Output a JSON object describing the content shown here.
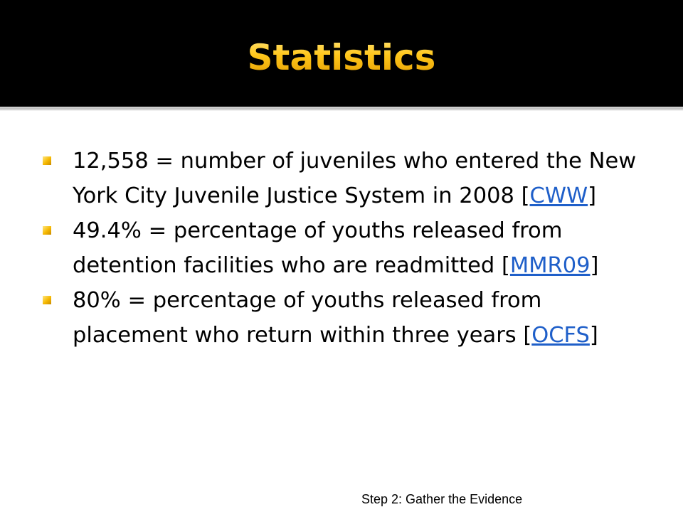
{
  "slide": {
    "title": "Statistics",
    "bullets": [
      {
        "text": "12,558 = number of juveniles who entered the New York City Juvenile Justice System in 2008 ",
        "ref_open": "[",
        "ref_label": "CWW",
        "ref_close": "]"
      },
      {
        "text": "49.4% = percentage of youths released from detention facilities who are readmitted ",
        "ref_open": "[",
        "ref_label": "MMR09",
        "ref_close": "]"
      },
      {
        "text": "80% = percentage of youths released from placement who return within three years ",
        "ref_open": "[",
        "ref_label": "OCFS",
        "ref_close": "]"
      }
    ],
    "footer": "Step 2:  Gather the Evidence"
  },
  "colors": {
    "header_background": "#000000",
    "title_gold": "#f5b800",
    "bullet_gold": "#f5b800",
    "link_blue": "#1f5fc9"
  }
}
